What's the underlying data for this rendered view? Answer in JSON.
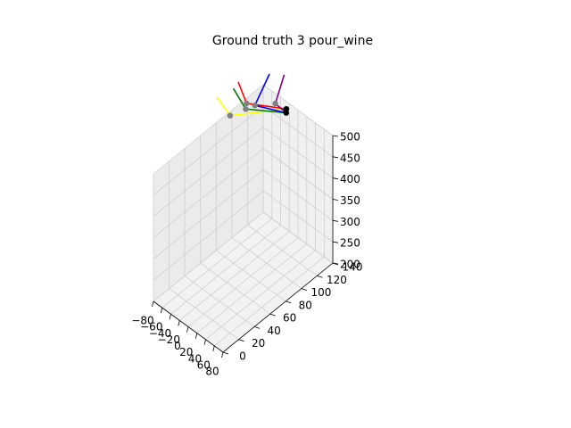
{
  "chart_data": {
    "type": "line",
    "projection": "3d",
    "title": "Ground truth 3 pour_wine",
    "xlabel": "",
    "ylabel": "",
    "zlabel": "",
    "grid": true,
    "xlim": [
      -80,
      80
    ],
    "ylim": [
      0,
      140
    ],
    "zlim": [
      200,
      500
    ],
    "x_ticks": [
      "−80",
      "−60",
      "−40",
      "−20",
      "0",
      "20",
      "40",
      "60",
      "80"
    ],
    "y_ticks": [
      "0",
      "20",
      "40",
      "60",
      "80",
      "100",
      "120",
      "140"
    ],
    "z_ticks": [
      "200",
      "250",
      "300",
      "350",
      "400",
      "450",
      "500"
    ],
    "series": [
      {
        "color": "#ffff00",
        "values": [
          {
            "x": -7,
            "y": 129,
            "z": 514
          },
          {
            "x": -48,
            "y": 80,
            "z": 541
          },
          {
            "x": -60,
            "y": 70,
            "z": 590
          }
        ]
      },
      {
        "color": "#ff0000",
        "values": [
          {
            "x": -7,
            "y": 129,
            "z": 514
          },
          {
            "x": -28,
            "y": 90,
            "z": 570
          },
          {
            "x": -38,
            "y": 85,
            "z": 619
          }
        ]
      },
      {
        "color": "#008000",
        "values": [
          {
            "x": 0,
            "y": 125,
            "z": 516
          },
          {
            "x": -30,
            "y": 90,
            "z": 555
          },
          {
            "x": -40,
            "y": 80,
            "z": 610
          }
        ]
      },
      {
        "color": "#0000ff",
        "values": [
          {
            "x": 0,
            "y": 125,
            "z": 516
          },
          {
            "x": -18,
            "y": 95,
            "z": 565
          },
          {
            "x": -12,
            "y": 110,
            "z": 620
          }
        ]
      },
      {
        "color": "#800080",
        "values": [
          {
            "x": 0,
            "y": 125,
            "z": 516
          },
          {
            "x": 2,
            "y": 110,
            "z": 562
          },
          {
            "x": 4,
            "y": 120,
            "z": 615
          }
        ]
      },
      {
        "color": "#000000",
        "values": [
          {
            "x": -7,
            "y": 129,
            "z": 514
          },
          {
            "x": 0,
            "y": 125,
            "z": 516
          }
        ]
      }
    ],
    "joints": [
      {
        "x": -7,
        "y": 129,
        "z": 514,
        "color": "#000000"
      },
      {
        "x": 0,
        "y": 125,
        "z": 516,
        "color": "#000000"
      },
      {
        "x": -48,
        "y": 80,
        "z": 541,
        "color": "#808080"
      },
      {
        "x": -28,
        "y": 90,
        "z": 570,
        "color": "#808080"
      },
      {
        "x": -30,
        "y": 90,
        "z": 555,
        "color": "#808080"
      },
      {
        "x": -18,
        "y": 95,
        "z": 565,
        "color": "#808080"
      },
      {
        "x": 2,
        "y": 110,
        "z": 562,
        "color": "#808080"
      }
    ]
  }
}
